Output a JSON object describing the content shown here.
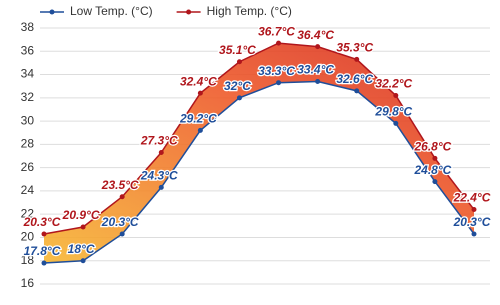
{
  "chart_data": {
    "type": "line",
    "categories": [
      null,
      null,
      null,
      null,
      null,
      null,
      null,
      null,
      null,
      null,
      null,
      null
    ],
    "series": [
      {
        "name": "Low Temp. (°C)",
        "color": "#1f4e9a",
        "values": [
          17.8,
          18,
          20.3,
          24.3,
          29.2,
          32,
          33.3,
          33.4,
          32.6,
          29.8,
          24.8,
          20.3
        ],
        "value_labels": [
          "17.8°C",
          "18°C",
          "20.3°C",
          "24.3°C",
          "29.2°C",
          "32°C",
          "33.3°C",
          "33.4°C",
          "32.6°C",
          "29.8°C",
          "24.8°C",
          "20.3°C"
        ]
      },
      {
        "name": "High Temp. (°C)",
        "color": "#b0161c",
        "values": [
          20.3,
          20.9,
          23.5,
          27.3,
          32.4,
          35.1,
          36.7,
          36.4,
          35.3,
          32.2,
          26.8,
          22.4
        ],
        "value_labels": [
          "20.3°C",
          "20.9°C",
          "23.5°C",
          "27.3°C",
          "32.4°C",
          "35.1°C",
          "36.7°C",
          "36.4°C",
          "35.3°C",
          "32.2°C",
          "26.8°C",
          "22.4°C"
        ]
      }
    ],
    "ylim": [
      16,
      38
    ],
    "yticks": [
      16,
      18,
      20,
      22,
      24,
      26,
      28,
      30,
      32,
      34,
      36,
      38
    ],
    "grid": true
  }
}
